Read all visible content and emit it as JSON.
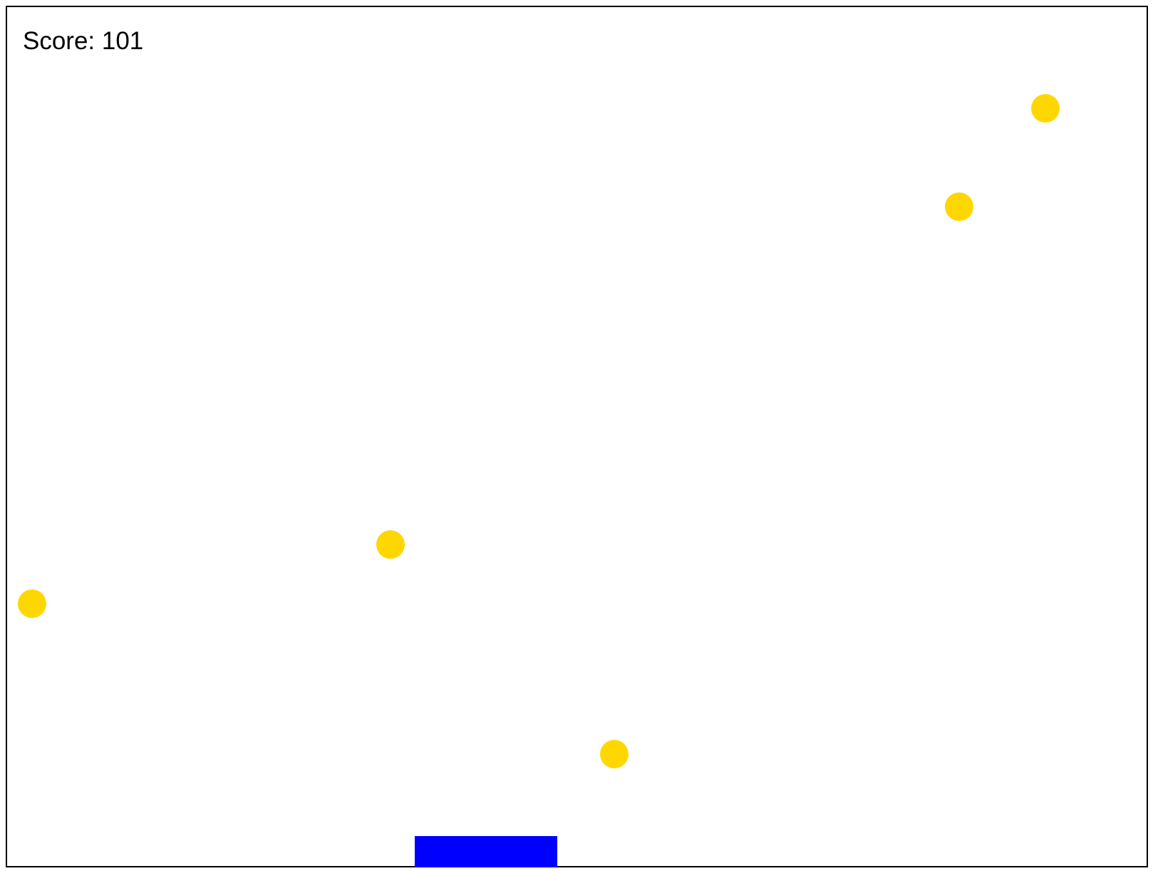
{
  "score_text": "Score: 101",
  "colors": {
    "coin": "#FFD700",
    "paddle": "#0000FF",
    "border": "#000000",
    "background": "#FFFFFF"
  },
  "coins_count_visible": 5
}
